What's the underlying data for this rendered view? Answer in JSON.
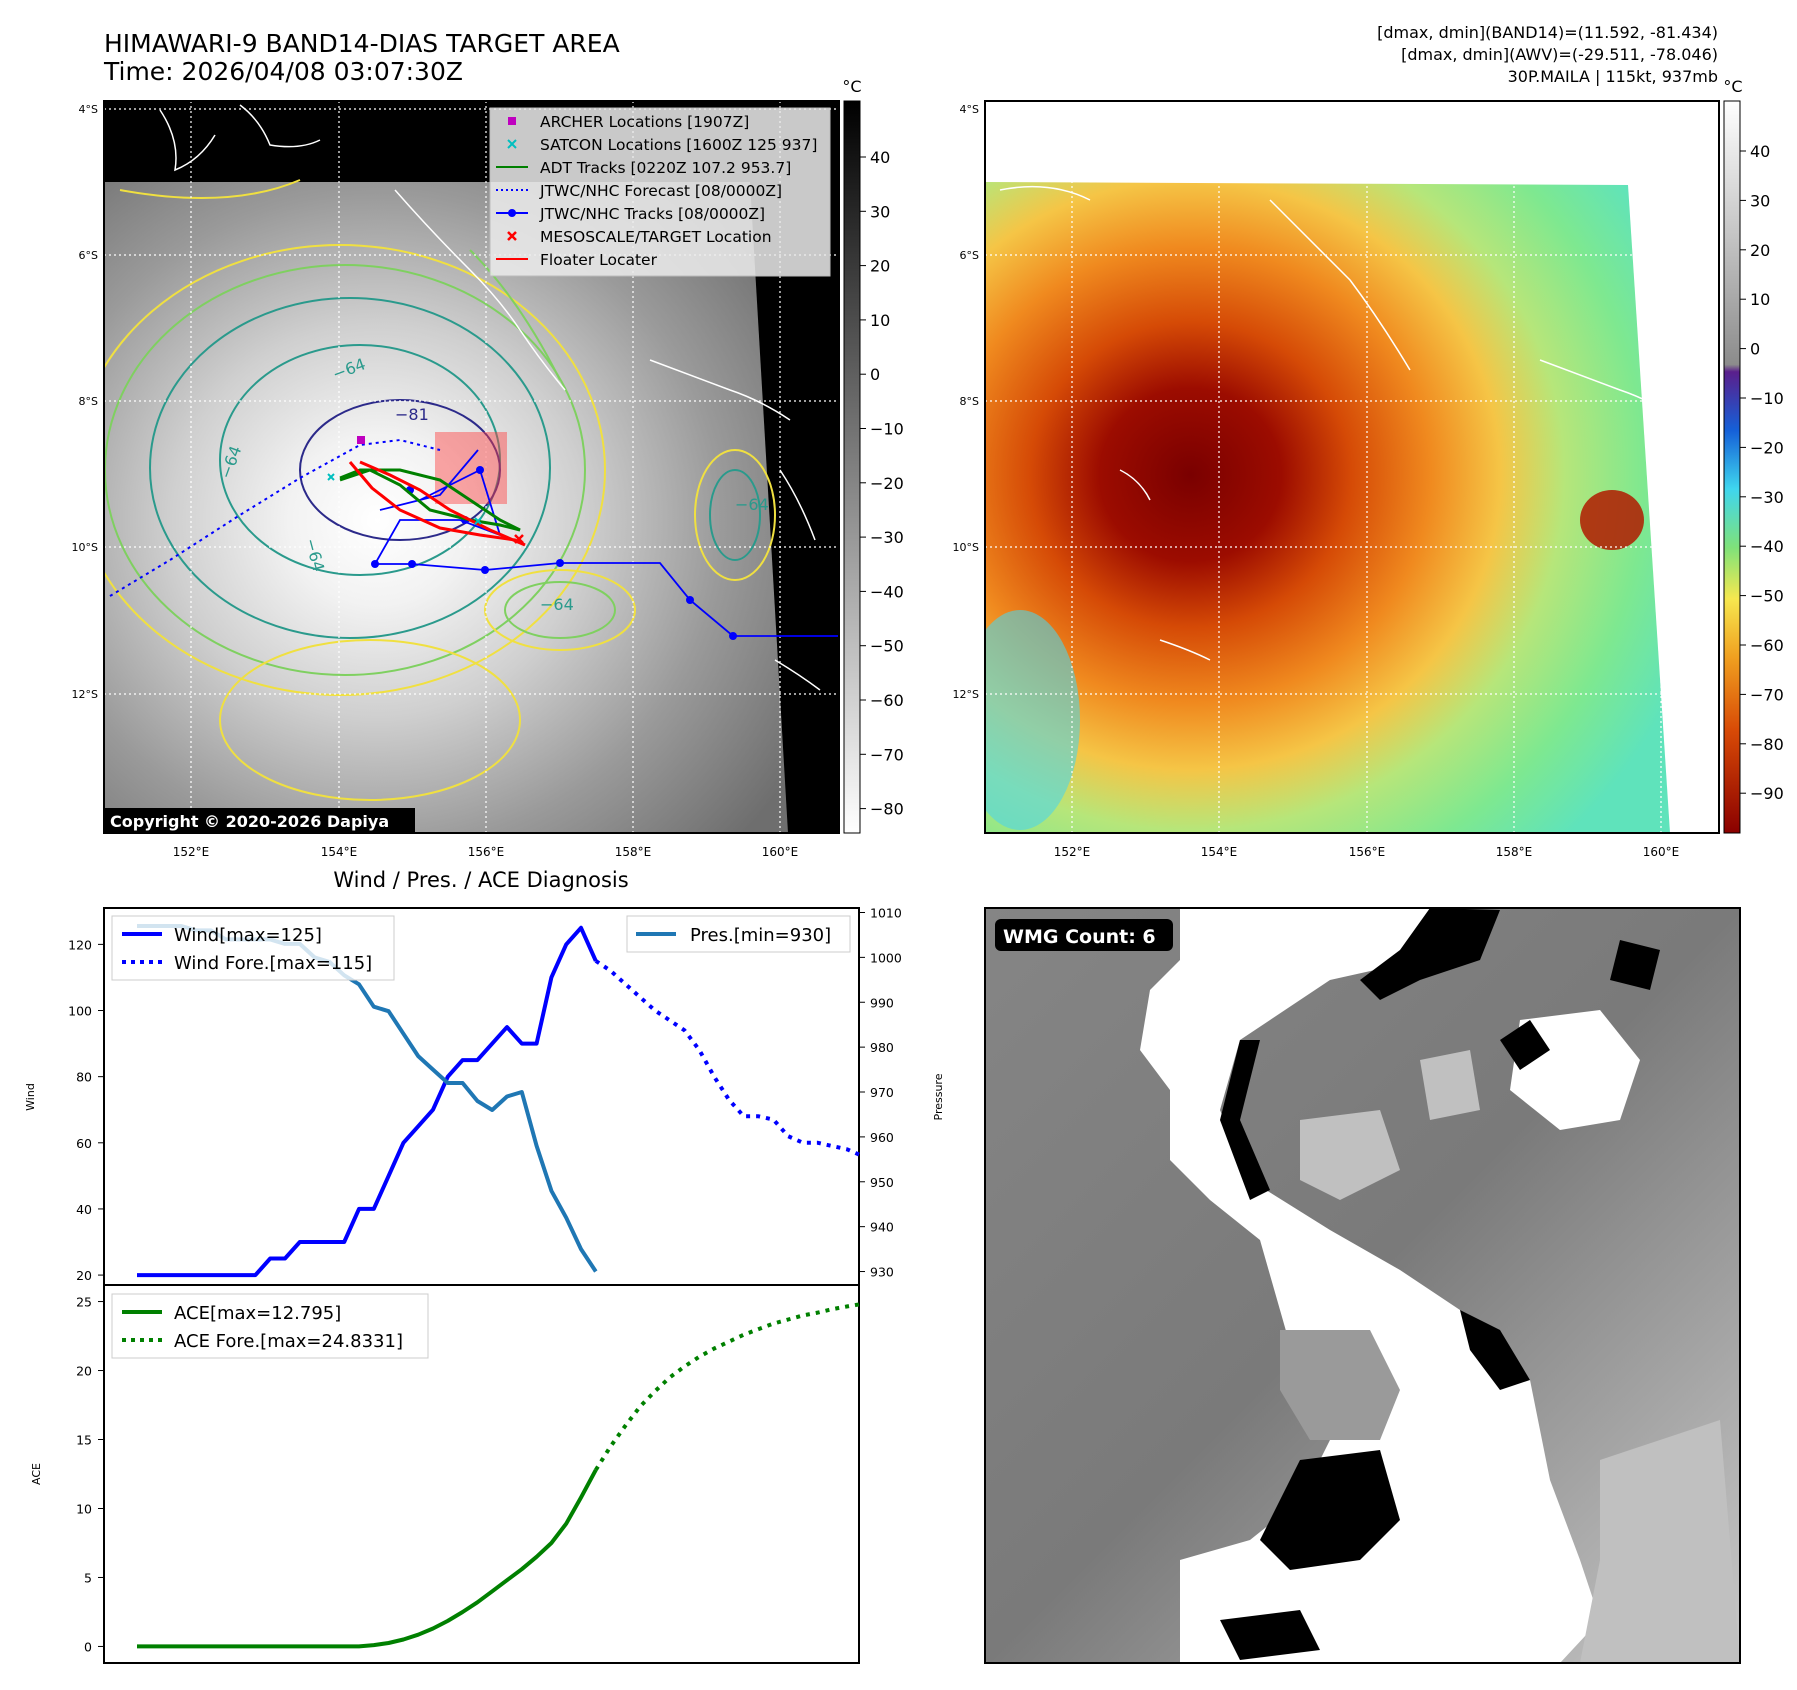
{
  "header": {
    "title_line1": "HIMAWARI-9 BAND14-DIAS TARGET AREA",
    "title_line2": "Time: 2026/04/08 03:07:30Z",
    "stats_line1": "[dmax, dmin](BAND14)=(11.592, -81.434)",
    "stats_line2": "[dmax, dmin](AWV)=(-29.511, -78.046)",
    "stats_line3": "30P.MAILA | 115kt, 937mb"
  },
  "colors": {
    "wind": "#0000ff",
    "pressure": "#1f77b4",
    "ace": "#008000",
    "archer": "#bf00bf",
    "satcon": "#00bfbf",
    "adt": "#008000",
    "jtwc_forecast": "#0000ff",
    "jtwc_track": "#0000ff",
    "mesoscale": "#ff0000",
    "floater": "#ff0000"
  },
  "map_left": {
    "colorbar_unit": "°C",
    "colorbar_ticks": [
      "40",
      "30",
      "20",
      "10",
      "0",
      "−10",
      "−20",
      "−30",
      "−40",
      "−50",
      "−60",
      "−70",
      "−80"
    ],
    "lat_labels": [
      "4°S",
      "6°S",
      "8°S",
      "10°S",
      "12°S"
    ],
    "lon_labels": [
      "152°E",
      "154°E",
      "156°E",
      "158°E",
      "160°E"
    ],
    "contour_labels": [
      "−64",
      "−81",
      "−64",
      "−64",
      "−64",
      "−64"
    ],
    "copyright": "Copyright © 2020-2026 Dapiya",
    "legend": [
      {
        "key": "archer",
        "label": "ARCHER Locations [1907Z]"
      },
      {
        "key": "satcon",
        "label": "SATCON Locations [1600Z 125 937]"
      },
      {
        "key": "adt",
        "label": "ADT Tracks [0220Z 107.2 953.7]"
      },
      {
        "key": "jtwc_forecast",
        "label": "JTWC/NHC Forecast [08/0000Z]"
      },
      {
        "key": "jtwc_track",
        "label": "JTWC/NHC Tracks [08/0000Z]"
      },
      {
        "key": "mesoscale",
        "label": "MESOSCALE/TARGET Location"
      },
      {
        "key": "floater",
        "label": "Floater Locater"
      }
    ]
  },
  "map_right": {
    "colorbar_unit": "°C",
    "colorbar_ticks": [
      "40",
      "30",
      "20",
      "10",
      "0",
      "−10",
      "−20",
      "−30",
      "−40",
      "−50",
      "−60",
      "−70",
      "−80",
      "−90"
    ],
    "lat_labels": [
      "4°S",
      "6°S",
      "8°S",
      "10°S",
      "12°S"
    ],
    "lon_labels": [
      "152°E",
      "154°E",
      "156°E",
      "158°E",
      "160°E"
    ]
  },
  "wmg": {
    "label": "WMG Count: 6"
  },
  "chart_data": [
    {
      "type": "line",
      "title": "Wind / Pres. / ACE Diagnosis",
      "ylabel": "Wind",
      "y2label": "Pressure",
      "ylim": [
        17,
        131
      ],
      "y2lim": [
        927,
        1011
      ],
      "yticks": [
        20,
        40,
        60,
        80,
        100,
        120
      ],
      "y2ticks": [
        930,
        940,
        950,
        960,
        970,
        980,
        990,
        1000,
        1010
      ],
      "legend_left": [
        "Wind[max=125]",
        "Wind Fore.[max=115]"
      ],
      "legend_right": [
        "Pres.[min=930]"
      ],
      "series": [
        {
          "name": "Wind",
          "axis": "left",
          "style": "solid",
          "x": [
            0,
            1,
            2,
            3,
            4,
            5,
            6,
            7,
            8,
            9,
            10,
            11,
            12,
            13,
            14,
            15,
            16,
            17,
            18,
            19,
            20,
            21,
            22,
            23,
            24,
            25,
            26,
            27,
            28,
            29,
            30,
            31
          ],
          "values": [
            20,
            20,
            20,
            20,
            20,
            20,
            20,
            20,
            20,
            25,
            25,
            30,
            30,
            30,
            30,
            40,
            40,
            50,
            60,
            65,
            70,
            80,
            85,
            85,
            90,
            95,
            90,
            90,
            110,
            120,
            125,
            115
          ]
        },
        {
          "name": "Wind Fore.",
          "axis": "left",
          "style": "dotted",
          "x": [
            31,
            32,
            33,
            34,
            35,
            36,
            37,
            38,
            39,
            40,
            41,
            42,
            43,
            44,
            45,
            46,
            47,
            48,
            49
          ],
          "values": [
            115,
            112,
            108,
            104,
            100,
            97,
            94,
            88,
            80,
            73,
            68,
            68,
            67,
            62,
            60,
            60,
            59,
            58,
            56
          ]
        },
        {
          "name": "Pres.",
          "axis": "right",
          "x": [
            0,
            1,
            2,
            3,
            4,
            5,
            6,
            7,
            8,
            9,
            10,
            11,
            12,
            13,
            14,
            15,
            16,
            17,
            18,
            19,
            20,
            21,
            22,
            23,
            24,
            25,
            26,
            27,
            28,
            29,
            30,
            31
          ],
          "values": [
            1007,
            1007,
            1007,
            1007,
            1006,
            1006,
            1004,
            1004,
            1004,
            1004,
            1003,
            1003,
            1000,
            999,
            996,
            994,
            989,
            988,
            983,
            978,
            975,
            972,
            972,
            968,
            966,
            969,
            970,
            958,
            948,
            942,
            935,
            930
          ]
        }
      ]
    },
    {
      "type": "line",
      "ylabel": "ACE",
      "ylim": [
        -1.2,
        26.2
      ],
      "yticks": [
        0,
        5,
        10,
        15,
        20,
        25
      ],
      "legend": [
        "ACE[max=12.795]",
        "ACE Fore.[max=24.8331]"
      ],
      "series": [
        {
          "name": "ACE",
          "style": "solid",
          "x": [
            0,
            2,
            4,
            6,
            8,
            10,
            12,
            14,
            15,
            16,
            17,
            18,
            19,
            20,
            21,
            22,
            23,
            24,
            25,
            26,
            27,
            28,
            29,
            30,
            31
          ],
          "values": [
            0,
            0,
            0,
            0,
            0,
            0,
            0,
            0,
            0,
            0.1,
            0.25,
            0.5,
            0.85,
            1.3,
            1.85,
            2.5,
            3.2,
            4.0,
            4.8,
            5.6,
            6.5,
            7.5,
            8.9,
            10.8,
            12.795
          ]
        },
        {
          "name": "ACE Fore.",
          "style": "dotted",
          "x": [
            31,
            32,
            33,
            34,
            35,
            36,
            37,
            38,
            39,
            40,
            41,
            42,
            43,
            44,
            45,
            46,
            47,
            48,
            49
          ],
          "values": [
            12.795,
            14.5,
            16.0,
            17.4,
            18.5,
            19.5,
            20.3,
            21.0,
            21.6,
            22.1,
            22.6,
            23.0,
            23.4,
            23.7,
            24.0,
            24.2,
            24.45,
            24.65,
            24.8331
          ]
        }
      ]
    }
  ]
}
